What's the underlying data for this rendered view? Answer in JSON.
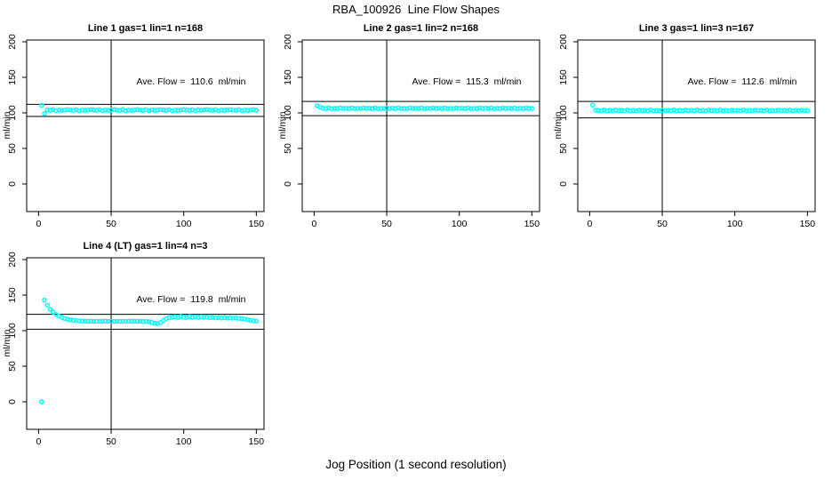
{
  "page": {
    "title": "RBA_100926  Line Flow Shapes",
    "xlabel": "Jog Position (1 second resolution)",
    "background": "#ffffff"
  },
  "colors": {
    "points": "#00ffff",
    "axis": "#000000",
    "reference_line": "#000000"
  },
  "axes": {
    "xlim": [
      -8.2,
      155.3
    ],
    "ylim": [
      -38.8,
      202.5
    ],
    "xticks": [
      0,
      50,
      100,
      150
    ],
    "yticks": [
      0,
      50,
      100,
      150,
      200
    ]
  },
  "chart_data": [
    {
      "type": "scatter",
      "title": "Line 1 gas=1 lin=1 n=168",
      "annotation": "Ave. Flow =  110.6  ml/min",
      "ave_flow": 110.6,
      "n": 168,
      "ylabel": "ml/min",
      "vline_x": 50,
      "hlines": [
        112,
        95
      ],
      "points": {
        "x_start": 2,
        "x_step": 2,
        "y": [
          110.5,
          99,
          104,
          103.5,
          104.5,
          103,
          104,
          103.5,
          104,
          104.5,
          104,
          103.5,
          104.5,
          103,
          104,
          103.5,
          104,
          104.5,
          104,
          103.5,
          104.5,
          103,
          104,
          103.5,
          104,
          104.5,
          104,
          103.5,
          104.5,
          103,
          104,
          103.5,
          104,
          104.5,
          104,
          103.5,
          104.5,
          103,
          104,
          103.5,
          104,
          104.5,
          104,
          103.5,
          104.5,
          103,
          104,
          103.5,
          104,
          104.5,
          104,
          103.5,
          104.5,
          103,
          104,
          103.5,
          104,
          104.5,
          104,
          103.5,
          104.5,
          103,
          104,
          103.5,
          104,
          104.5,
          104,
          103.5,
          104.5,
          103,
          104,
          103.5,
          104,
          104.5,
          103.5
        ]
      }
    },
    {
      "type": "scatter",
      "title": "Line 2 gas=1 lin=2 n=168",
      "annotation": "Ave. Flow =  115.3  ml/min",
      "ave_flow": 115.3,
      "n": 168,
      "ylabel": "ml/min",
      "vline_x": 50,
      "hlines": [
        116,
        96
      ],
      "points": {
        "x_start": 2,
        "x_step": 2,
        "y": [
          110,
          108.2,
          106.5,
          106,
          107,
          105.8,
          106.4,
          106,
          106.8,
          106.2,
          106.5,
          106,
          107,
          105.8,
          106.4,
          106,
          106.8,
          106.2,
          106.5,
          106,
          107,
          105.8,
          106.4,
          106,
          106.8,
          106.2,
          106.5,
          106,
          107,
          105.8,
          106.4,
          106,
          106.8,
          106.2,
          106.5,
          106,
          107,
          105.8,
          106.4,
          106,
          106.8,
          106.2,
          106.5,
          106,
          107,
          105.8,
          106.4,
          106,
          106.8,
          106.2,
          106.5,
          106,
          107,
          105.8,
          106.4,
          106,
          106.8,
          106.2,
          106.5,
          106,
          107,
          105.8,
          106.4,
          106,
          106.8,
          106.2,
          106.5,
          106,
          107,
          105.8,
          106.4,
          106,
          106.8,
          106.2,
          106.3
        ]
      }
    },
    {
      "type": "scatter",
      "title": "Line 3 gas=1 lin=3 n=167",
      "annotation": "Ave. Flow =  112.6  ml/min",
      "ave_flow": 112.6,
      "n": 167,
      "ylabel": "ml/min",
      "vline_x": 50,
      "hlines": [
        116,
        93
      ],
      "points": {
        "x_start": 2,
        "x_step": 2,
        "y": [
          111,
          103.8,
          103.5,
          103,
          104,
          102.8,
          103.4,
          103,
          103.8,
          103.2,
          103.5,
          103,
          104,
          102.8,
          103.4,
          103,
          103.8,
          103.2,
          103.5,
          103,
          104,
          102.8,
          103.4,
          103,
          103.8,
          103.2,
          103.5,
          103,
          104,
          102.8,
          103.4,
          103,
          103.8,
          103.2,
          103.5,
          103,
          104,
          102.8,
          103.4,
          103,
          103.8,
          103.2,
          103.5,
          103,
          104,
          102.8,
          103.4,
          103,
          103.8,
          103.2,
          103.5,
          103,
          104,
          102.8,
          103.4,
          103,
          103.8,
          103.2,
          103.5,
          103,
          104,
          102.8,
          103.4,
          103,
          103.8,
          103.2,
          103.5,
          103,
          104,
          102.8,
          103.4,
          103,
          103.8,
          103.2,
          103.2
        ]
      }
    },
    {
      "type": "scatter",
      "title": "Line 4 (LT) gas=1 lin=4 n=3",
      "annotation": "Ave. Flow =  119.8  ml/min",
      "ave_flow": 119.8,
      "n": 3,
      "ylabel": "ml/min",
      "vline_x": 50,
      "hlines": [
        123,
        102
      ],
      "points": {
        "x_start": 2,
        "x_step": 2,
        "y": [
          0,
          143,
          136,
          130,
          126,
          123,
          120.5,
          118.5,
          117,
          116,
          115.2,
          114.6,
          114.1,
          113.8,
          113.5,
          113.3,
          113.2,
          113.4,
          113.1,
          113.3,
          113,
          113.2,
          113.4,
          113.1,
          113.2,
          113,
          113.3,
          113.1,
          113.2,
          113,
          113.3,
          113.2,
          113.4,
          113.1,
          113.2,
          113,
          112.9,
          112.8,
          111.5,
          110.3,
          110,
          111.5,
          114.5,
          117,
          118.3,
          118.8,
          119.5,
          118.5,
          120,
          119,
          118.5,
          119.8,
          118.8,
          119.3,
          118.5,
          119.5,
          118.8,
          119,
          118.3,
          118.6,
          118,
          118.4,
          117.8,
          118.2,
          117.6,
          118,
          117.5,
          117.8,
          117.2,
          116.8,
          116.2,
          115.5,
          114.5,
          113.8,
          113.2
        ]
      }
    }
  ]
}
